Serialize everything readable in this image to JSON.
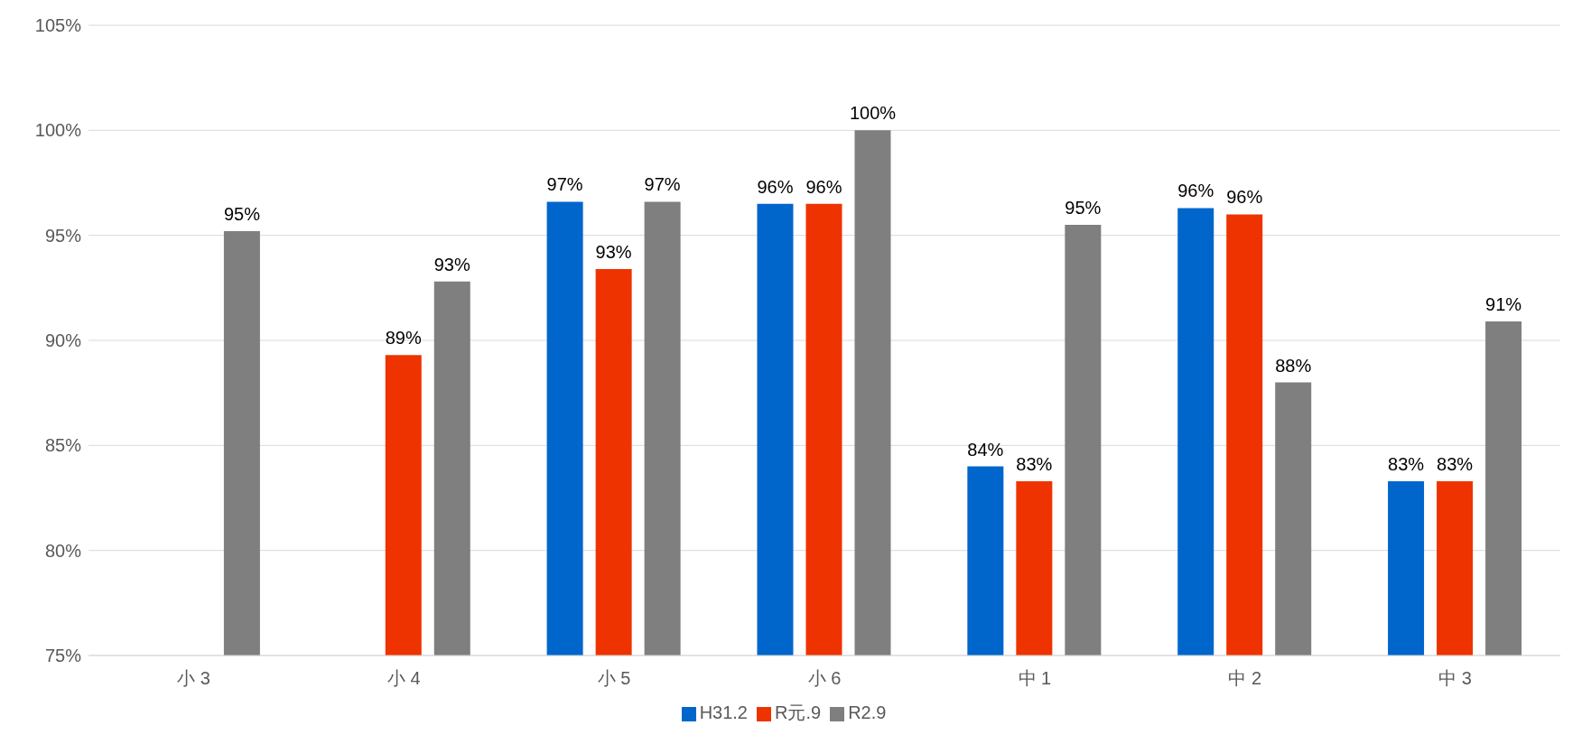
{
  "chart_data": {
    "type": "bar",
    "categories": [
      "小 3",
      "小 4",
      "小 5",
      "小 6",
      "中 1",
      "中 2",
      "中 3"
    ],
    "series": [
      {
        "name": "H31.2",
        "color": "#0066cc",
        "values": [
          null,
          null,
          96.6,
          96.5,
          84.0,
          96.3,
          83.3
        ],
        "value_labels": [
          null,
          null,
          "97%",
          "96%",
          "84%",
          "96%",
          "83%"
        ]
      },
      {
        "name": "R元.9",
        "color": "#ee3300",
        "values": [
          null,
          89.3,
          93.4,
          96.5,
          83.3,
          96.0,
          83.3
        ],
        "value_labels": [
          null,
          "89%",
          "93%",
          "96%",
          "83%",
          "96%",
          "83%"
        ]
      },
      {
        "name": "R2.9",
        "color": "#7f7f7f",
        "values": [
          95.2,
          92.8,
          96.6,
          100.0,
          95.5,
          88.0,
          90.9
        ],
        "value_labels": [
          "95%",
          "93%",
          "97%",
          "100%",
          "95%",
          "88%",
          "91%"
        ]
      }
    ],
    "ylim": [
      75,
      105
    ],
    "yticks": [
      {
        "value": 75,
        "label": "75%"
      },
      {
        "value": 80,
        "label": "80%"
      },
      {
        "value": 85,
        "label": "85%"
      },
      {
        "value": 90,
        "label": "90%"
      },
      {
        "value": 95,
        "label": "95%"
      },
      {
        "value": 100,
        "label": "100%"
      },
      {
        "value": 105,
        "label": "105%"
      }
    ],
    "grid": "y",
    "legend": "bottom"
  }
}
